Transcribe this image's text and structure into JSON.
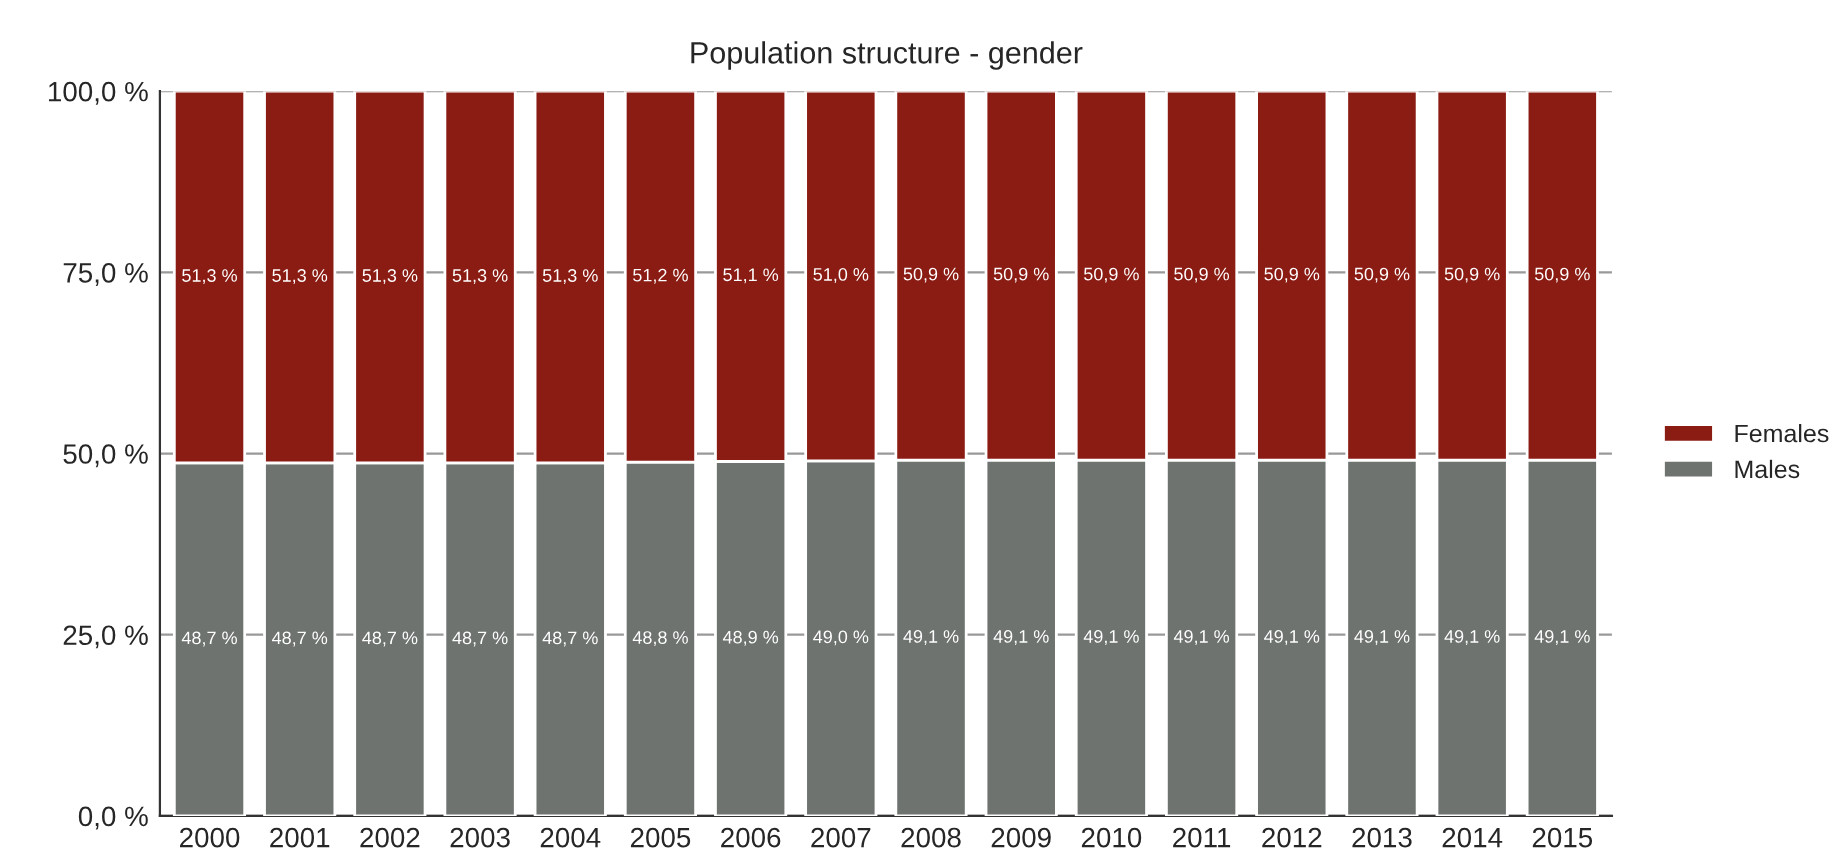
{
  "chart_data": {
    "type": "bar",
    "title": "Population structure - gender",
    "stacked": true,
    "categories": [
      "2000",
      "2001",
      "2002",
      "2003",
      "2004",
      "2005",
      "2006",
      "2007",
      "2008",
      "2009",
      "2010",
      "2011",
      "2012",
      "2013",
      "2014",
      "2015"
    ],
    "series": [
      {
        "name": "Males",
        "color": "#6e7370",
        "values": [
          48.7,
          48.7,
          48.7,
          48.7,
          48.7,
          48.8,
          48.9,
          49.0,
          49.1,
          49.1,
          49.1,
          49.1,
          49.1,
          49.1,
          49.1,
          49.1
        ],
        "value_labels": [
          "48,7 %",
          "48,7 %",
          "48,7 %",
          "48,7 %",
          "48,7 %",
          "48,8 %",
          "48,9 %",
          "49,0 %",
          "49,1 %",
          "49,1 %",
          "49,1 %",
          "49,1 %",
          "49,1 %",
          "49,1 %",
          "49,1 %",
          "49,1 %"
        ]
      },
      {
        "name": "Females",
        "color": "#8b1c14",
        "values": [
          51.3,
          51.3,
          51.3,
          51.3,
          51.3,
          51.2,
          51.1,
          51.0,
          50.9,
          50.9,
          50.9,
          50.9,
          50.9,
          50.9,
          50.9,
          50.9
        ],
        "value_labels": [
          "51,3 %",
          "51,3 %",
          "51,3 %",
          "51,3 %",
          "51,3 %",
          "51,2 %",
          "51,1 %",
          "51,0 %",
          "50,9 %",
          "50,9 %",
          "50,9 %",
          "50,9 %",
          "50,9 %",
          "50,9 %",
          "50,9 %",
          "50,9 %"
        ]
      }
    ],
    "ylim": [
      0,
      100
    ],
    "yticks": [
      {
        "value": 0,
        "label": "0,0 %"
      },
      {
        "value": 25,
        "label": "25,0 %"
      },
      {
        "value": 50,
        "label": "50,0 %"
      },
      {
        "value": 75,
        "label": "75,0 %"
      },
      {
        "value": 100,
        "label": "100,0 %"
      }
    ],
    "grid": "y",
    "legend": "right"
  }
}
